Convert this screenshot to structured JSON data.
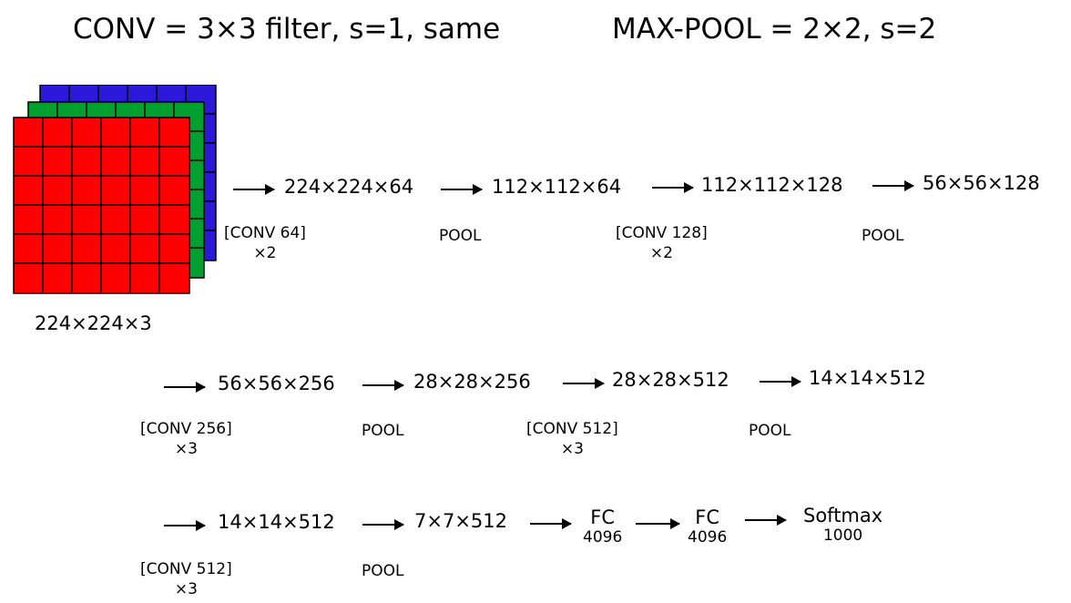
{
  "header": {
    "conv_def": "CONV = 3×3 filter, s=1, same",
    "pool_def": "MAX-POOL = 2×2, s=2"
  },
  "input": {
    "label": "224×224×3",
    "colors": {
      "red": "#ff0000",
      "green": "#00a030",
      "blue": "#2b18d8"
    }
  },
  "row1": {
    "dims": [
      "224×224×64",
      "112×112×64",
      "112×112×128",
      "56×56×128"
    ],
    "ops": [
      {
        "line1": "[CONV 64]",
        "line2": "×2"
      },
      {
        "line1": "POOL",
        "line2": ""
      },
      {
        "line1": "[CONV 128]",
        "line2": "×2"
      },
      {
        "line1": "POOL",
        "line2": ""
      }
    ]
  },
  "row2": {
    "dims": [
      "56×56×256",
      "28×28×256",
      "28×28×512",
      "14×14×512"
    ],
    "ops": [
      {
        "line1": "[CONV 256]",
        "line2": "×3"
      },
      {
        "line1": "POOL",
        "line2": ""
      },
      {
        "line1": "[CONV 512]",
        "line2": "×3"
      },
      {
        "line1": "POOL",
        "line2": ""
      }
    ]
  },
  "row3": {
    "dims": [
      "14×14×512",
      "7×7×512"
    ],
    "ops": [
      {
        "line1": "[CONV 512]",
        "line2": "×3"
      },
      {
        "line1": "POOL",
        "line2": ""
      }
    ],
    "fc": [
      {
        "label": "FC",
        "size": "4096"
      },
      {
        "label": "FC",
        "size": "4096"
      }
    ],
    "softmax": {
      "label": "Softmax",
      "size": "1000"
    }
  }
}
